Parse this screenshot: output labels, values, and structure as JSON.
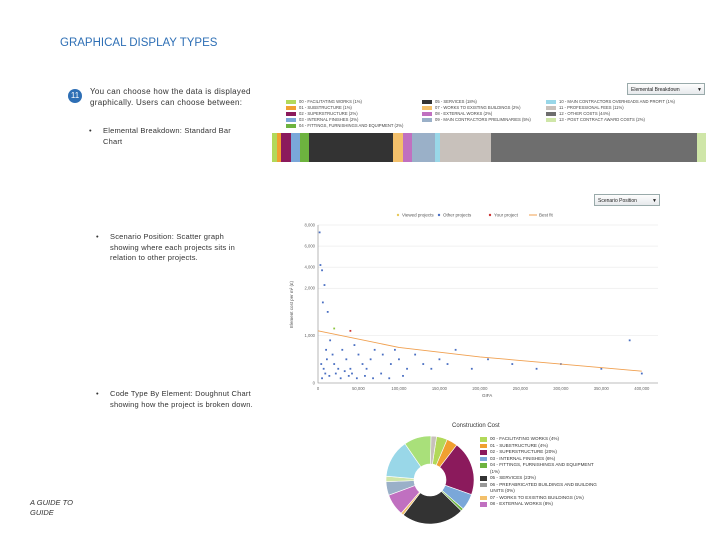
{
  "slide": {
    "title": "GRAPHICAL DISPLAY TYPES",
    "number": "11",
    "intro": "You can choose how the data is displayed graphically. Users can choose between:",
    "bullets": [
      "Elemental Breakdown: Standard Bar Chart",
      "Scenario Position: Scatter graph showing where each projects sits in relation to other projects.",
      "Code Type By Element: Doughnut Chart showing how the project is broken down."
    ],
    "footer": "A GUIDE TO GUIDE"
  },
  "bar_chart": {
    "dropdown_label": "Elemental Breakdown",
    "legend": [
      {
        "label": "00 - FACILITATING WORKS (1%)",
        "color": "#b2d95a"
      },
      {
        "label": "01 - SUBSTRUCTURE (1%)",
        "color": "#f0a030"
      },
      {
        "label": "02 - SUPERSTRUCTURE (2%)",
        "color": "#8b1a5c"
      },
      {
        "label": "03 - INTERNAL FINISHES (2%)",
        "color": "#7aa7d9"
      },
      {
        "label": "04 - FITTINGS, FURNISHINGS AND EQUIPMENT (2%)",
        "color": "#6db33f"
      },
      {
        "label": "05 - SERVICES (18%)",
        "color": "#333333"
      },
      {
        "label": "07 - WORKS TO EXISTING BUILDINGS (2%)",
        "color": "#f3c06b"
      },
      {
        "label": "08 - EXTERNAL WORKS (2%)",
        "color": "#c070c0"
      },
      {
        "label": "09 - MAIN CONTRACTORS PRELIMINARIES (5%)",
        "color": "#9ab0c8"
      },
      {
        "label": "10 - MAIN CONTRACTORS OVERHEADS AND PROFIT (1%)",
        "color": "#99d7e8"
      },
      {
        "label": "11 - PROFESSIONAL FEES (11%)",
        "color": "#c8c1bb"
      },
      {
        "label": "12 - OTHER COSTS (44%)",
        "color": "#6e6e6e"
      },
      {
        "label": "13 - POST CONTRACT AWARD COSTS (2%)",
        "color": "#cfe6a8"
      }
    ]
  },
  "scatter": {
    "dropdown_label": "Scenario Position",
    "legend": [
      "Viewed projects",
      "Other projects",
      "Your project",
      "Best fit"
    ],
    "ylabel": "Element cost per m² (£)",
    "xlabel": "GIFA",
    "y_ticks": [
      "8,000",
      "6,000",
      "4,000",
      "2,000",
      "1,000",
      "0"
    ],
    "x_ticks": [
      "0",
      "50,000",
      "100,000",
      "150,000",
      "200,000",
      "250,000",
      "300,000",
      "350,000",
      "400,000"
    ]
  },
  "pie": {
    "title": "Construction Cost",
    "legend": [
      {
        "label": "00 - FACILITATING WORKS (4%)",
        "color": "#b2d95a"
      },
      {
        "label": "01 - SUBSTRUCTURE (4%)",
        "color": "#f0a030"
      },
      {
        "label": "02 - SUPERSTRUCTURE (20%)",
        "color": "#8b1a5c"
      },
      {
        "label": "03 - INTERNAL FINISHES (6%)",
        "color": "#7aa7d9"
      },
      {
        "label": "04 - FITTINGS, FURNISHINGS AND EQUIPMENT (1%)",
        "color": "#6db33f"
      },
      {
        "label": "05 - SERVICES (23%)",
        "color": "#333333"
      },
      {
        "label": "06 - PREFABRICATED BUILDINGS AND BUILDING UNITS (0%)",
        "color": "#999999"
      },
      {
        "label": "07 - WORKS TO EXISTING BUILDINGS (1%)",
        "color": "#f3c06b"
      },
      {
        "label": "08 - EXTERNAL WORKS (8%)",
        "color": "#c070c0"
      }
    ]
  },
  "chart_data": [
    {
      "type": "bar",
      "title": "Elemental Breakdown",
      "categories": [
        "00",
        "01",
        "02",
        "03",
        "04",
        "05",
        "07",
        "08",
        "09",
        "10",
        "11",
        "12",
        "13"
      ],
      "values": [
        1,
        1,
        2,
        2,
        2,
        18,
        2,
        2,
        5,
        1,
        11,
        44,
        2
      ]
    },
    {
      "type": "scatter",
      "title": "Scenario Position",
      "xlabel": "GIFA",
      "ylabel": "Element cost per m² (£)",
      "xlim": [
        0,
        420000
      ],
      "ylim": [
        0,
        8000
      ],
      "series": [
        {
          "name": "Other projects",
          "points": [
            [
              2000,
              7300
            ],
            [
              3000,
              4200
            ],
            [
              5000,
              3700
            ],
            [
              8000,
              2300
            ],
            [
              6000,
              1700
            ],
            [
              12000,
              1500
            ],
            [
              15000,
              900
            ],
            [
              18000,
              600
            ],
            [
              10000,
              700
            ],
            [
              4000,
              400
            ],
            [
              7000,
              300
            ],
            [
              9000,
              200
            ],
            [
              11000,
              500
            ],
            [
              20000,
              400
            ],
            [
              25000,
              300
            ],
            [
              30000,
              700
            ],
            [
              35000,
              500
            ],
            [
              40000,
              300
            ],
            [
              45000,
              800
            ],
            [
              50000,
              600
            ],
            [
              55000,
              400
            ],
            [
              60000,
              300
            ],
            [
              65000,
              500
            ],
            [
              70000,
              700
            ],
            [
              80000,
              600
            ],
            [
              90000,
              400
            ],
            [
              95000,
              700
            ],
            [
              100000,
              500
            ],
            [
              110000,
              300
            ],
            [
              120000,
              600
            ],
            [
              130000,
              400
            ],
            [
              140000,
              300
            ],
            [
              150000,
              500
            ],
            [
              160000,
              400
            ],
            [
              170000,
              700
            ],
            [
              190000,
              300
            ],
            [
              210000,
              500
            ],
            [
              240000,
              400
            ],
            [
              270000,
              300
            ],
            [
              300000,
              400
            ],
            [
              350000,
              300
            ],
            [
              385000,
              900
            ],
            [
              400000,
              200
            ],
            [
              5000,
              100
            ],
            [
              14000,
              150
            ],
            [
              22000,
              200
            ],
            [
              28000,
              100
            ],
            [
              33000,
              250
            ],
            [
              38000,
              150
            ],
            [
              42000,
              200
            ],
            [
              48000,
              100
            ],
            [
              58000,
              150
            ],
            [
              68000,
              100
            ],
            [
              78000,
              200
            ],
            [
              88000,
              100
            ],
            [
              105000,
              150
            ]
          ]
        },
        {
          "name": "Your project",
          "points": [
            [
              40000,
              1100
            ]
          ]
        },
        {
          "name": "Viewed projects",
          "points": [
            [
              20000,
              1150
            ]
          ]
        },
        {
          "name": "Best fit",
          "points": [
            [
              0,
              1100
            ],
            [
              100000,
              750
            ],
            [
              200000,
              550
            ],
            [
              300000,
              400
            ],
            [
              400000,
              250
            ]
          ]
        }
      ]
    },
    {
      "type": "pie",
      "title": "Construction Cost",
      "categories": [
        "00",
        "01",
        "02",
        "03",
        "04",
        "05",
        "06",
        "07",
        "08",
        "09",
        "10",
        "11",
        "12",
        "13"
      ],
      "values": [
        4,
        4,
        20,
        6,
        1,
        23,
        0,
        1,
        8,
        5,
        2,
        14,
        10,
        2
      ]
    }
  ]
}
